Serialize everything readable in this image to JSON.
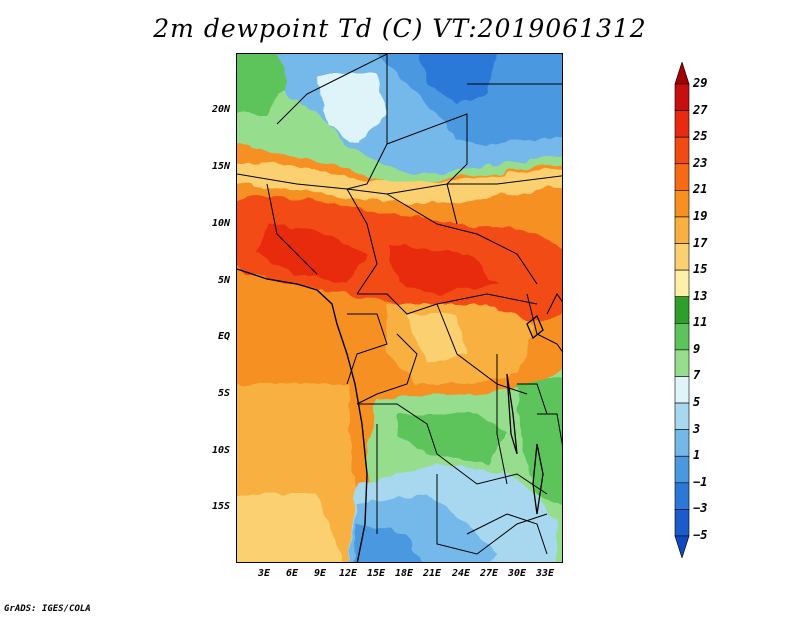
{
  "title": "2m dewpoint Td (C) VT:2019061312",
  "footer": "GrADS: IGES/COLA",
  "map": {
    "lat_labels": [
      "20N",
      "15N",
      "10N",
      "5N",
      "EQ",
      "5S",
      "10S",
      "15S"
    ],
    "lon_labels": [
      "3E",
      "6E",
      "9E",
      "12E",
      "15E",
      "18E",
      "21E",
      "24E",
      "27E",
      "30E",
      "33E"
    ]
  },
  "colorbar": {
    "levels": [
      "29",
      "27",
      "25",
      "23",
      "21",
      "19",
      "17",
      "15",
      "13",
      "11",
      "9",
      "7",
      "5",
      "3",
      "1",
      "−1",
      "−3",
      "−5"
    ],
    "colors": [
      "#a50000",
      "#c80f0f",
      "#e82a10",
      "#f24b12",
      "#f66a14",
      "#f79020",
      "#f8b040",
      "#fad070",
      "#fdf0a8",
      "#2ea02a",
      "#5cc45a",
      "#96de8e",
      "#dff4f8",
      "#a8d8f0",
      "#74b8ea",
      "#4a98e0",
      "#2c78d8",
      "#1a5ccc",
      "#1048c0"
    ]
  }
}
